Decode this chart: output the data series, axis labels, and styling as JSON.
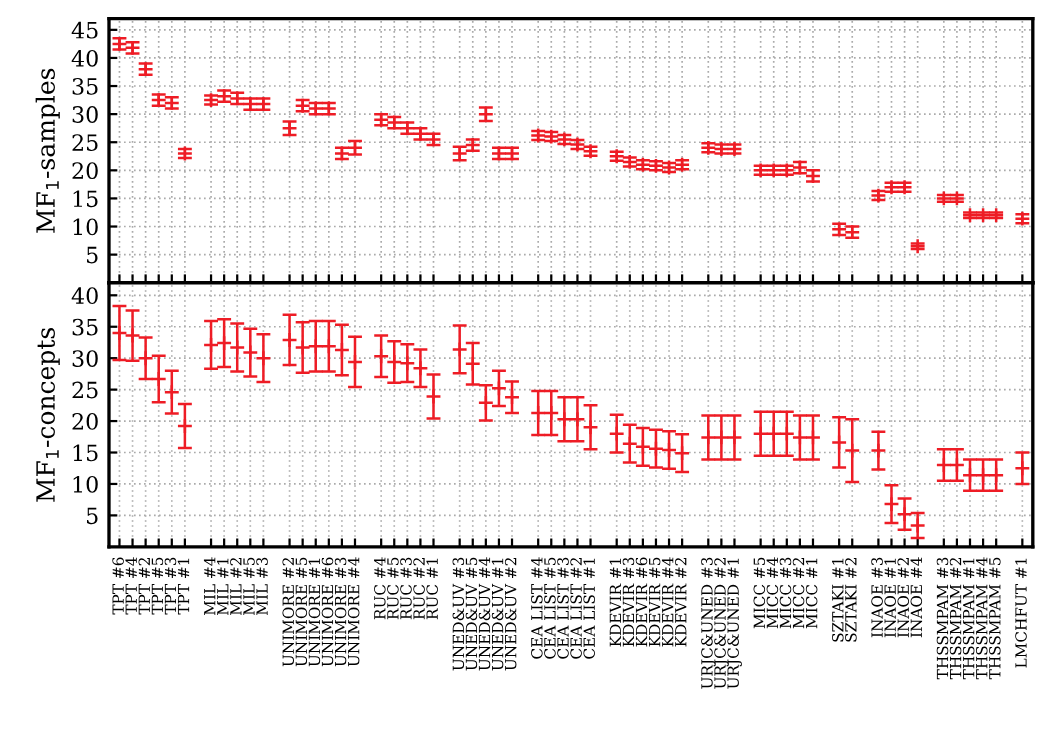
{
  "chart_data": [
    {
      "type": "scatter",
      "ylabel": "MF$_{1}$-samples",
      "marker": "cross",
      "grid": true,
      "tick_labels": "y",
      "ylim": [
        0,
        47
      ],
      "yticks": [
        5,
        10,
        15,
        20,
        25,
        30,
        35,
        40,
        45
      ],
      "categories": [
        null,
        null,
        null,
        null,
        null,
        null,
        null,
        null,
        null,
        null,
        null,
        null,
        null,
        null,
        null,
        null,
        null,
        null,
        null,
        null,
        null,
        null,
        null,
        null,
        null,
        null,
        null,
        null,
        null,
        null,
        null,
        null,
        null,
        null,
        null,
        null,
        null,
        null,
        null,
        null,
        null,
        null,
        null,
        null,
        null,
        null,
        null,
        null,
        null,
        null,
        null,
        null,
        null,
        null,
        null,
        null,
        null,
        null,
        null,
        null,
        null,
        null,
        null,
        null,
        null,
        null,
        null,
        null,
        null,
        null
      ],
      "series": [
        {
          "color": "#ee1c25",
          "values": [
            42.5,
            41.8,
            38,
            32.5,
            32,
            23,
            null,
            32.5,
            33.2,
            32.8,
            31.8,
            31.8,
            null,
            27.5,
            31.5,
            31,
            31,
            23,
            24,
            null,
            29,
            28.5,
            27.5,
            26.5,
            25.5,
            null,
            23,
            24.5,
            30,
            23,
            23,
            null,
            26.2,
            26,
            25.5,
            24.6,
            23.4,
            null,
            22.5,
            21.5,
            21,
            20.8,
            20.5,
            21,
            null,
            24,
            23.8,
            23.8,
            null,
            20,
            20,
            20,
            20.5,
            19,
            null,
            9.5,
            9,
            null,
            15.5,
            17,
            17,
            6.5,
            null,
            15,
            15,
            12,
            12,
            12,
            null,
            11.4
          ],
          "errors": [
            1,
            1,
            1,
            1,
            1,
            0.8,
            null,
            0.8,
            1,
            1,
            1,
            1,
            null,
            1.2,
            1,
            1,
            1,
            1,
            1.2,
            null,
            1,
            1,
            1,
            1,
            1,
            null,
            1.2,
            1,
            1.2,
            1,
            1,
            null,
            0.8,
            0.8,
            0.8,
            0.8,
            0.8,
            null,
            0.8,
            0.8,
            0.8,
            0.8,
            0.8,
            0.8,
            null,
            0.8,
            0.8,
            0.8,
            null,
            0.8,
            0.8,
            0.8,
            1,
            1,
            null,
            1,
            1,
            null,
            0.8,
            0.8,
            0.8,
            0.5,
            null,
            0.6,
            0.6,
            0.5,
            0.5,
            0.5,
            null,
            0.8
          ]
        }
      ]
    },
    {
      "type": "scatter",
      "ylabel": "MF$_{1}$-concepts",
      "marker": "cross",
      "grid": true,
      "ylim": [
        0,
        42
      ],
      "yticks": [
        5,
        10,
        15,
        20,
        25,
        30,
        35,
        40
      ],
      "categories": [
        "TPT #6",
        "TPT #4",
        "TPT #2",
        "TPT #5",
        "TPT #3",
        "TPT #1",
        null,
        "MIL #4",
        "MIL #1",
        "MIL #2",
        "MIL #5",
        "MIL #3",
        null,
        "UNIMORE #2",
        "UNIMORE #5",
        "UNIMORE #1",
        "UNIMORE #6",
        "UNIMORE #3",
        "UNIMORE #4",
        null,
        "RUC #4",
        "RUC #5",
        "RUC #3",
        "RUC #2",
        "RUC #1",
        null,
        "UNED&UV #3",
        "UNED&UV #5",
        "UNED&UV #4",
        "UNED&UV #1",
        "UNED&UV #2",
        null,
        "CEA LIST #4",
        "CEA LIST #5",
        "CEA LIST #3",
        "CEA LIST #2",
        "CEA LIST #1",
        null,
        "KDEVIR #1",
        "KDEVIR #3",
        "KDEVIR #6",
        "KDEVIR #5",
        "KDEVIR #4",
        "KDEVIR #2",
        null,
        "URJC&UNED #3",
        "URJC&UNED #2",
        "URJC&UNED #1",
        null,
        "MICC #5",
        "MICC #4",
        "MICC #3",
        "MICC #2",
        "MICC #1",
        null,
        "SZTAKI #1",
        "SZTAKI #2",
        null,
        "INAOE #3",
        "INAOE #1",
        "INAOE #2",
        "INAOE #4",
        null,
        "THSSMPAM #3",
        "THSSMPAM #2",
        "THSSMPAM #1",
        "THSSMPAM #4",
        "THSSMPAM #5",
        null,
        "LMCHFUT #1"
      ],
      "series": [
        {
          "color": "#ee1c25",
          "values": [
            34,
            33.6,
            30,
            26.7,
            24.6,
            19.2,
            null,
            32.1,
            32.4,
            31.7,
            30.9,
            30,
            null,
            32.9,
            31.7,
            31.9,
            31.9,
            31.3,
            29.4,
            null,
            30.3,
            29.4,
            29.2,
            28.4,
            23.9,
            null,
            31.4,
            29.1,
            22.9,
            25.2,
            23.8,
            null,
            21.3,
            21.3,
            20.3,
            20.3,
            19,
            null,
            18,
            16.4,
            15.9,
            15.6,
            15.4,
            14.9,
            null,
            17.4,
            17.4,
            17.4,
            null,
            18,
            18,
            18,
            17.4,
            17.4,
            null,
            16.6,
            15.3,
            null,
            15.3,
            6.8,
            5.2,
            3.4,
            null,
            13,
            13,
            11.4,
            11.4,
            11.4,
            null,
            12.5
          ],
          "errors": [
            4.3,
            4,
            3.3,
            3.7,
            3.4,
            3.5,
            null,
            3.8,
            3.8,
            3.8,
            3.8,
            3.8,
            null,
            4,
            4,
            4,
            4,
            4,
            4,
            null,
            3.3,
            3.3,
            3,
            3,
            3.5,
            null,
            3.8,
            3.3,
            2.8,
            2.8,
            2.5,
            null,
            3.5,
            3.5,
            3.5,
            3.5,
            3.5,
            null,
            3,
            3,
            3,
            3,
            3,
            3,
            null,
            3.5,
            3.5,
            3.5,
            null,
            3.5,
            3.5,
            3.5,
            3.5,
            3.5,
            null,
            4,
            5,
            null,
            3,
            3,
            2.5,
            2,
            null,
            2.5,
            2.5,
            2.5,
            2.5,
            2.5,
            null,
            2.5
          ]
        }
      ]
    }
  ]
}
